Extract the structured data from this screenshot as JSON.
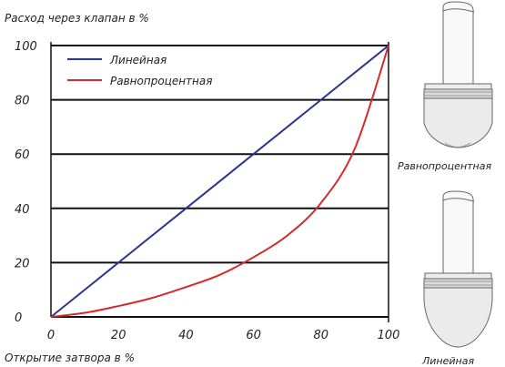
{
  "chart_data": {
    "type": "line",
    "ylabel": "Расход через клапан в %",
    "xlabel": "Открытие затвора в %",
    "xlim": [
      0,
      100
    ],
    "ylim": [
      0,
      100
    ],
    "x_ticks": [
      "0",
      "20",
      "40",
      "60",
      "80",
      "100"
    ],
    "y_ticks": [
      "0",
      "20",
      "40",
      "60",
      "80",
      "100"
    ],
    "grid": "horizontal",
    "legend": "top-left",
    "series": [
      {
        "name": "Линейная",
        "color": "#2b3590",
        "x": [
          0,
          20,
          40,
          60,
          80,
          100
        ],
        "y": [
          0,
          20,
          40,
          60,
          80,
          100
        ]
      },
      {
        "name": "Равнопроцентная",
        "color": "#d42a2a",
        "x": [
          0,
          10,
          20,
          30,
          40,
          50,
          60,
          70,
          80,
          90,
          100
        ],
        "y": [
          0,
          1.5,
          4,
          7,
          11,
          15.5,
          22,
          30,
          42,
          62,
          100
        ]
      }
    ]
  },
  "illustrations": {
    "top_caption": "Равнопроцентная",
    "bottom_caption": "Линейная"
  }
}
